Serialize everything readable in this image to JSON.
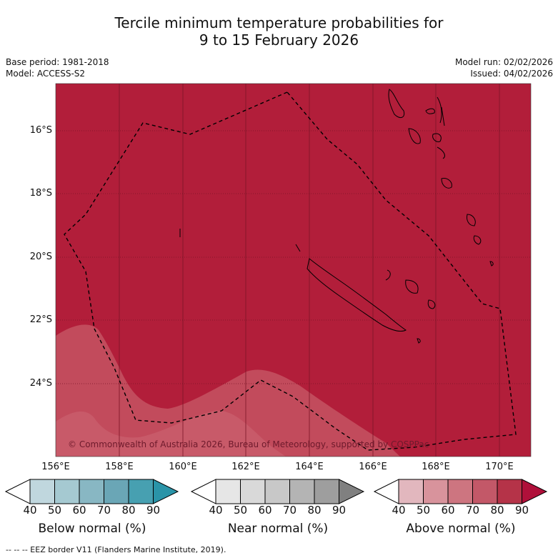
{
  "title": {
    "line1": "Tercile minimum temperature probabilities for",
    "line2": "9 to 15 February 2026"
  },
  "meta": {
    "base_period": "Base period: 1981-2018",
    "model": "Model: ACCESS-S2",
    "model_run": "Model run: 02/02/2026",
    "issued": "Issued: 04/02/2026"
  },
  "map": {
    "latitude_labels": [
      "16°S",
      "18°S",
      "20°S",
      "22°S",
      "24°S"
    ],
    "longitude_labels": [
      "156°E",
      "158°E",
      "160°E",
      "162°E",
      "164°E",
      "166°E",
      "168°E",
      "170°E"
    ],
    "copyright": "© Commonwealth of Australia 2026, Bureau of Meteorology, supported by COSPPac",
    "colors": {
      "above_90": "#b21e3a",
      "above_80": "#c24b5c",
      "above_70": "#c85a69"
    }
  },
  "colorbars": [
    {
      "label": "Below normal (%)",
      "ticks": [
        "40",
        "50",
        "60",
        "70",
        "80",
        "90"
      ],
      "colors": [
        "#ffffff",
        "#c0d7de",
        "#a5c9d1",
        "#88b7c3",
        "#6aa6b6",
        "#47a0b1",
        "#2a94a8"
      ]
    },
    {
      "label": "Near normal (%)",
      "ticks": [
        "40",
        "50",
        "60",
        "70",
        "80",
        "90"
      ],
      "colors": [
        "#ffffff",
        "#e6e6e6",
        "#d9d9d9",
        "#c8c8c8",
        "#b4b4b4",
        "#9e9e9e",
        "#808080"
      ]
    },
    {
      "label": "Above normal (%)",
      "ticks": [
        "40",
        "50",
        "60",
        "70",
        "80",
        "90"
      ],
      "colors": [
        "#ffffff",
        "#e2b7be",
        "#d8939c",
        "#cd7580",
        "#c35868",
        "#b53348",
        "#b0103a"
      ]
    }
  ],
  "footer": "--  --  -- EEZ border V11 (Flanders Marine Institute, 2019)."
}
